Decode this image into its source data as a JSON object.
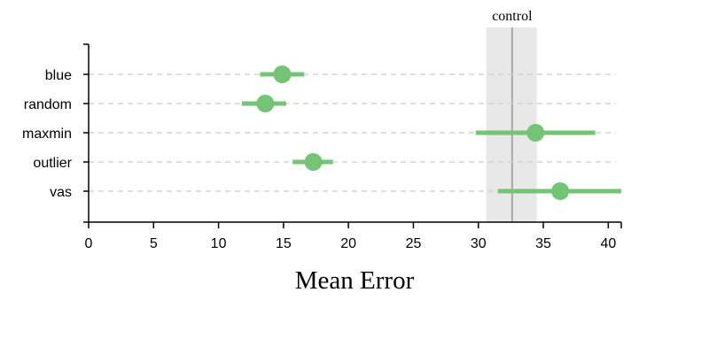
{
  "chart_data": {
    "type": "dot-interval",
    "xlabel": "Mean Error",
    "xlim": [
      0,
      41
    ],
    "xticks": [
      "0",
      "5",
      "10",
      "15",
      "20",
      "25",
      "30",
      "35",
      "40"
    ],
    "grid": "dashed horizontal lines per category",
    "categories": [
      "blue",
      "random",
      "maxmin",
      "outlier",
      "vas"
    ],
    "points": [
      {
        "category": "blue",
        "mean": 14.9,
        "low": 13.2,
        "high": 16.6
      },
      {
        "category": "random",
        "mean": 13.6,
        "low": 11.8,
        "high": 15.2
      },
      {
        "category": "maxmin",
        "mean": 34.4,
        "low": 29.8,
        "high": 39.0
      },
      {
        "category": "outlier",
        "mean": 17.3,
        "low": 15.7,
        "high": 18.8
      },
      {
        "category": "vas",
        "mean": 36.3,
        "low": 31.5,
        "high": 41.0
      }
    ],
    "control": {
      "label": "control",
      "value": 32.6,
      "low": 30.6,
      "high": 34.5
    },
    "colors": {
      "marker": "#74c476",
      "band": "#e8e8e8",
      "control_line": "#a8a8a8",
      "grid": "#d3d3d3"
    }
  }
}
